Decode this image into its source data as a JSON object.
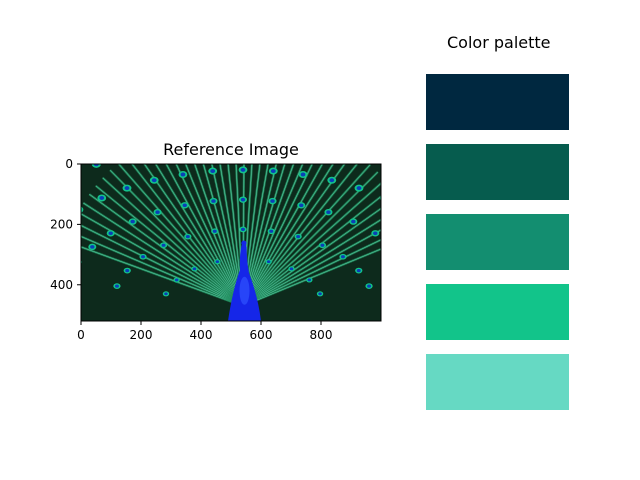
{
  "chart_data": [
    {
      "type": "image",
      "title": "Reference Image",
      "image_subject": "peacock with fanned tail feathers",
      "image_colors": {
        "background": "#0d2a1c",
        "feather": "#1e8a5a",
        "quill": "#79e3c8",
        "eye_outer": "#12c48a",
        "eye_inner": "#0a3fb8",
        "body": "#1526e8",
        "body_highlight": "#2f52ff"
      },
      "x_ticks": [
        "0",
        "200",
        "400",
        "600",
        "800"
      ],
      "y_ticks": [
        "0",
        "200",
        "400"
      ],
      "xlim": [
        0,
        1000
      ],
      "ylim": [
        520,
        0
      ],
      "grid": false
    },
    {
      "type": "palette",
      "title": "Color palette",
      "colors": [
        "#002840",
        "#065c4e",
        "#138e70",
        "#12c48a",
        "#66d9c3"
      ]
    }
  ]
}
